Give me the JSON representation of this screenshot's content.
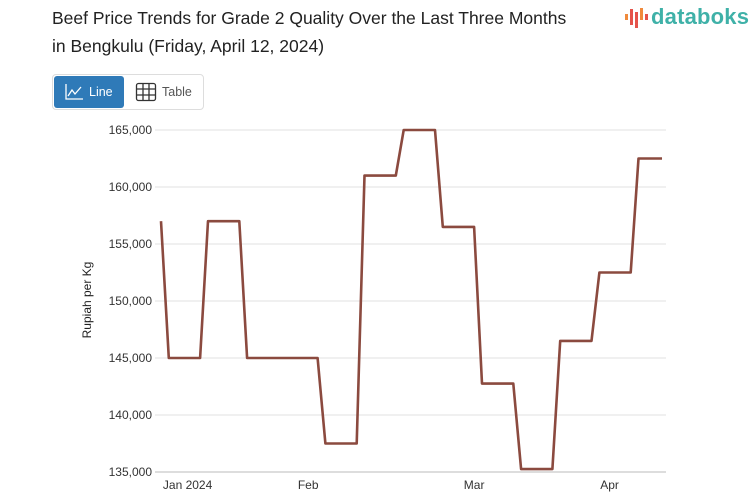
{
  "title": "Beef Price Trends for Grade 2 Quality Over the Last Three Months in Bengkulu (Friday, April 12, 2024)",
  "logo": {
    "text": "databoks"
  },
  "view_toggle": {
    "line_label": "Line",
    "table_label": "Table",
    "active": "Line"
  },
  "colors": {
    "line": "#8b4a3f",
    "accent": "#2f7ab8",
    "logo": "#3fb1a8"
  },
  "chart_data": {
    "type": "line",
    "title": "Beef Price Trends for Grade 2 Quality Over the Last Three Months in Bengkulu (Friday, April 12, 2024)",
    "xlabel": "",
    "ylabel": "Rupiah per Kg",
    "ylim": [
      135000,
      165000
    ],
    "yticks": [
      135000,
      140000,
      145000,
      150000,
      155000,
      160000,
      165000
    ],
    "ytick_labels": [
      "135,000",
      "140,000",
      "145,000",
      "150,000",
      "155,000",
      "160,000",
      "165,000"
    ],
    "xlim": [
      0,
      64
    ],
    "xticks": [
      {
        "label": "Jan 2024",
        "x": 3.4
      },
      {
        "label": "Feb",
        "x": 18.8
      },
      {
        "label": "Mar",
        "x": 40
      },
      {
        "label": "Apr",
        "x": 57.3
      }
    ],
    "grid": true,
    "series": [
      {
        "name": "Grade 2 Beef",
        "x": [
          0,
          1,
          5,
          6,
          10,
          11,
          20,
          21,
          25,
          26,
          30,
          31,
          35,
          36,
          40,
          41,
          45,
          46,
          50,
          51,
          55,
          56,
          60,
          61,
          64
        ],
        "values": [
          157000,
          145000,
          145000,
          157000,
          157000,
          145000,
          145000,
          137500,
          137500,
          161000,
          161000,
          165000,
          165000,
          156500,
          156500,
          142750,
          142750,
          135250,
          135250,
          146500,
          146500,
          152500,
          152500,
          162500,
          162500
        ]
      }
    ]
  }
}
